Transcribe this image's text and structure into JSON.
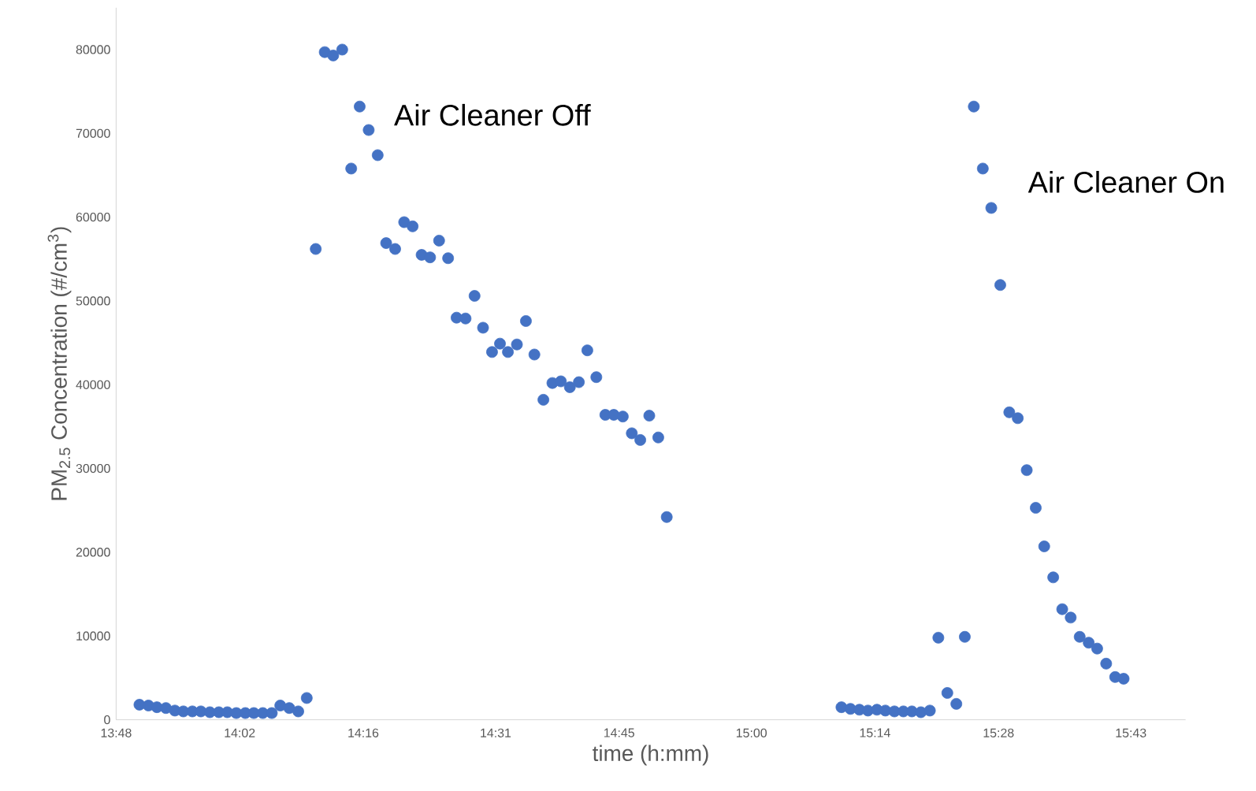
{
  "chart_data": {
    "type": "scatter",
    "xlabel": "time (h:mm)",
    "ylabel": "PM$_{2.5}$ Concentration (#/cm$^{3}$)",
    "marker": "circle",
    "xlim": [
      13.8,
      15.82
    ],
    "ylim": [
      0,
      85000
    ],
    "xticks": [
      {
        "value": 13.8,
        "label": "13:48"
      },
      {
        "value": 14.0333,
        "label": "14:02"
      },
      {
        "value": 14.2667,
        "label": "14:16"
      },
      {
        "value": 14.5167,
        "label": "14:31"
      },
      {
        "value": 14.75,
        "label": "14:45"
      },
      {
        "value": 15.0,
        "label": "15:00"
      },
      {
        "value": 15.2333,
        "label": "15:14"
      },
      {
        "value": 15.4667,
        "label": "15:28"
      },
      {
        "value": 15.7167,
        "label": "15:43"
      }
    ],
    "yticks": [
      0,
      10000,
      20000,
      30000,
      40000,
      50000,
      60000,
      70000,
      80000
    ],
    "annotations": [
      "Air Cleaner Off",
      "Air Cleaner On"
    ],
    "series": [
      {
        "color": "#4472c4",
        "x": [
          13.844,
          13.861,
          13.877,
          13.894,
          13.911,
          13.927,
          13.944,
          13.96,
          13.977,
          13.994,
          14.01,
          14.027,
          14.044,
          14.06,
          14.077,
          14.094,
          14.11,
          14.127,
          14.144,
          14.16,
          14.177,
          14.194,
          14.21,
          14.227,
          14.244,
          14.26,
          14.277,
          14.294,
          14.31,
          14.327,
          14.344,
          14.36,
          14.377,
          14.393,
          14.41,
          14.427,
          14.443,
          14.46,
          14.477,
          14.493,
          14.51,
          14.525,
          14.54,
          14.557,
          14.574,
          14.59,
          14.607,
          14.624,
          14.64,
          14.657,
          14.674,
          14.69,
          14.707,
          14.724,
          14.74,
          14.757,
          14.774,
          14.79,
          14.807,
          14.824,
          14.84,
          15.17,
          15.187,
          15.204,
          15.22,
          15.237,
          15.253,
          15.27,
          15.287,
          15.303,
          15.32,
          15.337,
          15.353,
          15.37,
          15.387,
          15.403,
          15.42,
          15.437,
          15.453,
          15.47,
          15.487,
          15.503,
          15.52,
          15.537,
          15.553,
          15.57,
          15.587,
          15.603,
          15.62,
          15.637,
          15.653,
          15.67,
          15.687,
          15.703
        ],
        "values": [
          1800,
          1700,
          1500,
          1400,
          1100,
          1000,
          1000,
          1000,
          900,
          900,
          900,
          800,
          800,
          800,
          800,
          800,
          1700,
          1400,
          1000,
          2600,
          56200,
          79700,
          79300,
          80000,
          65800,
          73200,
          70400,
          67400,
          56900,
          56200,
          59400,
          58900,
          55500,
          55200,
          57200,
          55100,
          48000,
          47900,
          50600,
          46800,
          43900,
          44900,
          43900,
          44800,
          47600,
          43600,
          38200,
          40200,
          40400,
          39700,
          40300,
          44100,
          40900,
          36400,
          36400,
          36200,
          34200,
          33400,
          36300,
          33700,
          24200,
          1500,
          1300,
          1200,
          1100,
          1200,
          1100,
          1000,
          1000,
          1000,
          900,
          1100,
          9800,
          3200,
          1900,
          9900,
          73200,
          65800,
          61100,
          51900,
          36700,
          36000,
          29800,
          25300,
          20700,
          17000,
          13200,
          12200,
          9900,
          9200,
          8500,
          6700,
          5100,
          4900
        ]
      }
    ]
  }
}
